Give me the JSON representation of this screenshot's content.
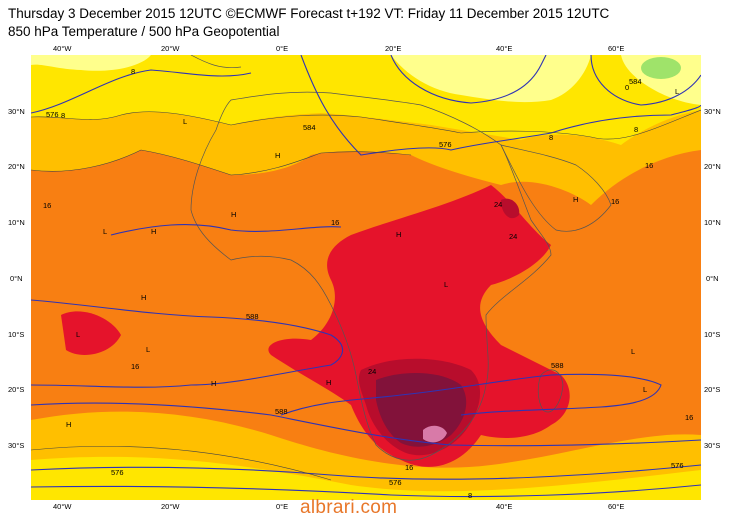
{
  "header": {
    "line1": "Thursday 3 December 2015 12UTC ©ECMWF Forecast t+192 VT: Friday 11 December 2015 12UTC",
    "line2": "850 hPa Temperature / 500 hPa Geopotential"
  },
  "axes": {
    "lon_ticks": [
      "40°W",
      "20°W",
      "0°E",
      "20°E",
      "40°E",
      "60°E"
    ],
    "lat_ticks": [
      "30°N",
      "20°N",
      "10°N",
      "0°N",
      "10°S",
      "20°S",
      "30°S"
    ]
  },
  "contour_labels": {
    "geopotential": [
      "576",
      "584",
      "588",
      "576",
      "576",
      "584",
      "588",
      "588",
      "576",
      "576",
      "576",
      "584"
    ],
    "temperature": [
      "8",
      "8",
      "8",
      "16",
      "24",
      "24",
      "16",
      "16",
      "16",
      "16",
      "8",
      "8",
      "16",
      "24",
      "16",
      "8",
      "0",
      "8"
    ]
  },
  "pressure_markers": {
    "high": "H",
    "low": "L"
  },
  "palette": {
    "cold_green": "#9fe36a",
    "pale_yellow": "#ffff8c",
    "yellow": "#ffe600",
    "amber": "#ffbf00",
    "orange": "#f87f12",
    "red_orange": "#ef4a1e",
    "red": "#e5132b",
    "crimson": "#b80d2c",
    "maroon": "#82123a",
    "pink": "#d87aa8",
    "geopotential_line": "#2f33b5",
    "coastline": "#666666"
  },
  "watermark": "albrari.com"
}
